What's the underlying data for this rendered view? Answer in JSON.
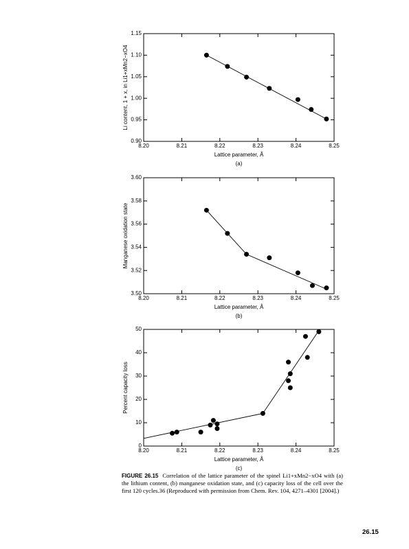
{
  "chart_data": [
    {
      "type": "scatter",
      "xlabel": "Lattice parameter, Å",
      "ylabel": "Li content, 1 + x, in Li1+xMn2−xO4",
      "sublabel": "(a)",
      "xlim": [
        8.2,
        8.25
      ],
      "xticks": [
        {
          "value": 8.2,
          "label": "8.20"
        },
        {
          "value": 8.21,
          "label": "8.21"
        },
        {
          "value": 8.22,
          "label": "8.22"
        },
        {
          "value": 8.23,
          "label": "8.23"
        },
        {
          "value": 8.24,
          "label": "8.24"
        },
        {
          "value": 8.25,
          "label": "8.25"
        }
      ],
      "ylim": [
        0.9,
        1.15
      ],
      "yticks": [
        {
          "value": 0.9,
          "label": "0.90"
        },
        {
          "value": 0.95,
          "label": "0.95"
        },
        {
          "value": 1.0,
          "label": "1.00"
        },
        {
          "value": 1.05,
          "label": "1.05"
        },
        {
          "value": 1.1,
          "label": "1.10"
        },
        {
          "value": 1.15,
          "label": "1.15"
        }
      ],
      "series": [
        {
          "mode": "markers",
          "color": "#000000",
          "x": [
            8.2165,
            8.222,
            8.227,
            8.233,
            8.2405,
            8.244,
            8.248
          ],
          "values": [
            1.1,
            1.074,
            1.049,
            1.023,
            0.997,
            0.974,
            0.952
          ]
        },
        {
          "mode": "line",
          "color": "#000000",
          "x": [
            8.2165,
            8.248
          ],
          "values": [
            1.1,
            0.952
          ]
        }
      ]
    },
    {
      "type": "scatter",
      "xlabel": "Lattice parameter, Å",
      "ylabel": "Manganese oxidation state",
      "sublabel": "(b)",
      "xlim": [
        8.2,
        8.25
      ],
      "xticks": [
        {
          "value": 8.2,
          "label": "8.20"
        },
        {
          "value": 8.21,
          "label": "8.21"
        },
        {
          "value": 8.22,
          "label": "8.22"
        },
        {
          "value": 8.23,
          "label": "8.23"
        },
        {
          "value": 8.24,
          "label": "8.24"
        },
        {
          "value": 8.25,
          "label": "8.25"
        }
      ],
      "ylim": [
        3.5,
        3.6
      ],
      "yticks": [
        {
          "value": 3.5,
          "label": "3.50"
        },
        3.52,
        3.54,
        3.56,
        3.58,
        {
          "value": 3.6,
          "label": "3.60"
        }
      ],
      "series": [
        {
          "mode": "markers",
          "color": "#000000",
          "x": [
            8.2165,
            8.222,
            8.227,
            8.233,
            8.2405,
            8.2443,
            8.248
          ],
          "values": [
            3.572,
            3.552,
            3.534,
            3.531,
            3.518,
            3.507,
            3.505
          ]
        },
        {
          "mode": "line",
          "color": "#000000",
          "x": [
            8.2165,
            8.227,
            8.248
          ],
          "values": [
            3.572,
            3.534,
            3.504
          ]
        }
      ]
    },
    {
      "type": "scatter",
      "xlabel": "Lattice parameter, Å",
      "ylabel": "Percent capacity loss",
      "sublabel": "(c)",
      "xlim": [
        8.2,
        8.25
      ],
      "xticks": [
        {
          "value": 8.2,
          "label": "8.20"
        },
        {
          "value": 8.21,
          "label": "8.21"
        },
        {
          "value": 8.22,
          "label": "8.22"
        },
        {
          "value": 8.23,
          "label": "8.23"
        },
        {
          "value": 8.24,
          "label": "8.24"
        },
        {
          "value": 8.25,
          "label": "8.25"
        }
      ],
      "ylim": [
        0,
        50
      ],
      "yticks": [
        0,
        10,
        20,
        30,
        40,
        50
      ],
      "series": [
        {
          "mode": "markers",
          "color": "#000000",
          "x": [
            8.2075,
            8.2087,
            8.215,
            8.2175,
            8.2183,
            8.2193,
            8.2193,
            8.2313,
            8.238,
            8.238,
            8.2385,
            8.2385,
            8.2425,
            8.243,
            8.246
          ],
          "values": [
            5.5,
            6,
            6,
            9,
            11,
            9.5,
            7.5,
            14,
            36,
            28,
            31,
            25,
            47,
            38,
            49
          ]
        },
        {
          "mode": "line",
          "color": "#000000",
          "x": [
            8.2,
            8.2313,
            8.246
          ],
          "values": [
            3.3,
            14,
            49.5
          ]
        }
      ]
    }
  ],
  "caption": {
    "label": "FIGURE 26.15",
    "text": "Correlation of the lattice parameter of the spinel Li1+xMn2−xO4 with (a) the lithium content, (b) manganese oxidation state, and (c) capacity loss of the cell over the first 120 cycles.36 (Reproduced with permission from Chem. Rev. 104, 4271–4301 [2004].)"
  },
  "page_number": "26.15"
}
